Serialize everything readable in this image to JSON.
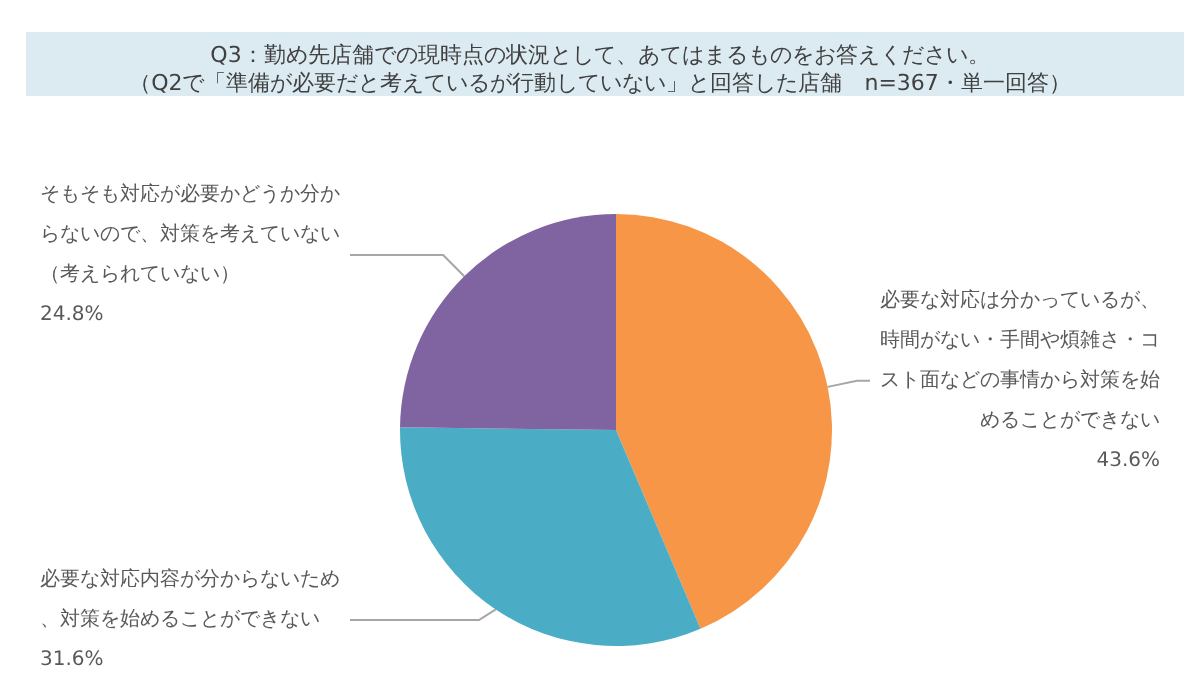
{
  "chart_data": {
    "type": "pie",
    "title": "Q3：勤め先店舗での現時点の状況として、あてはまるものをお答えください。",
    "subtitle": "（Q2で「準備が必要だと考えているが行動していない」と回答した店舗　n=367・単一回答）",
    "categories": [
      "必要な対応は分かっているが、時間がない・手間や煩雑さ・コスト面などの事情から対策を始めることができない",
      "必要な対応内容が分からないため、対策を始めることができない",
      "そもそも対応が必要かどうか分からないので、対策を考えていない（考えられていない）"
    ],
    "values": [
      43.6,
      31.6,
      24.8
    ],
    "value_labels": [
      "43.6%",
      "31.6%",
      "24.8%"
    ],
    "colors": [
      "#f79646",
      "#4bacc6",
      "#8064a2"
    ],
    "legend": false
  }
}
